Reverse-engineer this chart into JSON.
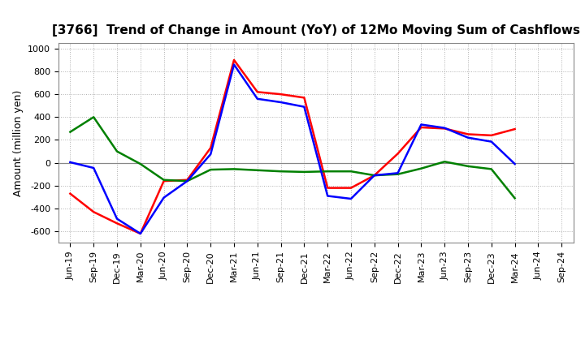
{
  "title": "[3766]  Trend of Change in Amount (YoY) of 12Mo Moving Sum of Cashflows",
  "ylabel": "Amount (million yen)",
  "x_labels": [
    "Jun-19",
    "Sep-19",
    "Dec-19",
    "Mar-20",
    "Jun-20",
    "Sep-20",
    "Dec-20",
    "Mar-21",
    "Jun-21",
    "Sep-21",
    "Dec-21",
    "Mar-22",
    "Jun-22",
    "Sep-22",
    "Dec-22",
    "Mar-23",
    "Jun-23",
    "Sep-23",
    "Dec-23",
    "Mar-24",
    "Jun-24",
    "Sep-24"
  ],
  "operating_cashflow": [
    -270,
    -430,
    -530,
    -620,
    -160,
    -150,
    130,
    900,
    620,
    600,
    570,
    -220,
    -220,
    -110,
    80,
    310,
    300,
    250,
    240,
    295,
    null,
    null
  ],
  "investing_cashflow": [
    270,
    400,
    100,
    -10,
    -150,
    -160,
    -60,
    -55,
    -65,
    -75,
    -80,
    -75,
    -75,
    -110,
    -100,
    -50,
    10,
    -30,
    -55,
    -310,
    null,
    null
  ],
  "free_cashflow": [
    5,
    -45,
    -490,
    -620,
    -305,
    -160,
    75,
    860,
    560,
    530,
    490,
    -290,
    -315,
    -110,
    -90,
    335,
    305,
    220,
    185,
    -10,
    null,
    null
  ],
  "operating_color": "#ff0000",
  "investing_color": "#008000",
  "free_color": "#0000ff",
  "ylim": [
    -700,
    1050
  ],
  "yticks": [
    -600,
    -400,
    -200,
    0,
    200,
    400,
    600,
    800,
    1000
  ],
  "background_color": "#ffffff",
  "plot_bg_color": "#ffffff",
  "grid_color": "#b0b0b0",
  "line_width": 1.8,
  "title_fontsize": 11,
  "axis_fontsize": 8,
  "ylabel_fontsize": 9,
  "legend_fontsize": 9
}
